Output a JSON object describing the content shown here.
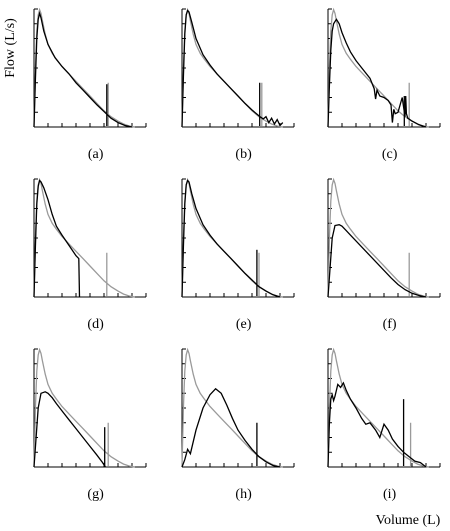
{
  "chart_data": {
    "type": "line",
    "ylabel": "Flow (L/s)",
    "xlabel": "Volume (L)",
    "layout": "3x3 grid of flow-volume curves; grey = reference curve, black = test curve; vertical strokes mark end-of-curve volume",
    "grid": false,
    "legend": "none",
    "xlim": [
      0,
      8
    ],
    "ylim": [
      0,
      8
    ],
    "x_ticks": [
      0,
      1,
      2,
      3,
      4,
      5,
      6,
      7,
      8
    ],
    "y_ticks": [
      0,
      1,
      2,
      3,
      4,
      5,
      6,
      7,
      8
    ],
    "reference_curve": {
      "x": [
        0,
        0.1,
        0.2,
        0.3,
        0.4,
        0.5,
        0.6,
        0.8,
        1.0,
        1.3,
        1.6,
        2.0,
        2.5,
        3.0,
        3.5,
        4.0,
        4.5,
        5.0,
        5.5,
        6.0,
        6.4,
        6.8,
        7.2
      ],
      "y": [
        0,
        4.0,
        6.5,
        7.6,
        7.95,
        7.7,
        7.2,
        6.3,
        5.6,
        5.0,
        4.6,
        4.1,
        3.6,
        3.1,
        2.6,
        2.1,
        1.6,
        1.1,
        0.7,
        0.4,
        0.2,
        0.07,
        0
      ]
    },
    "panels": [
      {
        "label": "(a)",
        "ref_end": 5.3,
        "test": {
          "x": [
            0,
            0.1,
            0.2,
            0.3,
            0.4,
            0.5,
            0.7,
            1.0,
            1.5,
            2.0,
            2.5,
            3.0,
            3.5,
            4.0,
            4.5,
            5.0,
            5.5,
            6.0,
            6.5,
            7.0
          ],
          "y": [
            0,
            3.2,
            6.0,
            7.3,
            7.7,
            7.4,
            6.5,
            5.6,
            4.7,
            4.1,
            3.6,
            3.0,
            2.5,
            2.0,
            1.5,
            1.05,
            0.6,
            0.3,
            0.1,
            0
          ]
        },
        "test_end": 5.2,
        "test_end_height": 2.9
      },
      {
        "label": "(b)",
        "ref_end": 5.7,
        "test": {
          "x": [
            0,
            0.1,
            0.2,
            0.3,
            0.4,
            0.5,
            0.7,
            1.0,
            1.5,
            2.0,
            2.5,
            3.0,
            3.5,
            4.0,
            4.5,
            5.0,
            5.5,
            5.8,
            6.0,
            6.2,
            6.4,
            6.6,
            6.8,
            7.0,
            7.2
          ],
          "y": [
            0,
            3.4,
            6.3,
            7.6,
            7.9,
            7.8,
            7.1,
            6.0,
            4.9,
            4.2,
            3.6,
            3.1,
            2.6,
            2.1,
            1.6,
            1.15,
            0.75,
            0.55,
            0.7,
            0.3,
            0.6,
            0.2,
            0.5,
            0.1,
            0.3
          ]
        },
        "test_end": 5.55,
        "test_end_height": 3.0
      },
      {
        "label": "(c)",
        "ref_end": 5.8,
        "test": {
          "x": [
            0,
            0.1,
            0.2,
            0.3,
            0.4,
            0.6,
            0.8,
            1.0,
            1.3,
            1.6,
            2.0,
            2.5,
            3.0,
            3.3,
            3.4,
            3.5,
            3.7,
            4.0,
            4.3,
            4.5,
            4.6,
            4.7,
            4.8,
            5.0,
            5.3,
            5.5,
            5.55,
            5.6,
            5.7,
            6.0,
            6.5,
            7.0
          ],
          "y": [
            0,
            2.8,
            5.2,
            6.5,
            7.0,
            7.3,
            7.0,
            6.4,
            5.7,
            5.1,
            4.5,
            3.9,
            3.3,
            2.6,
            1.9,
            2.5,
            2.1,
            2.0,
            1.8,
            1.5,
            0.3,
            1.2,
            0.9,
            1.0,
            2.0,
            0.7,
            2.1,
            0.9,
            0.6,
            0.4,
            0.15,
            0
          ]
        },
        "test_end": 5.45,
        "test_end_height": 2.1
      },
      {
        "label": "(d)",
        "ref_end": 5.2,
        "test": {
          "x": [
            0,
            0.1,
            0.2,
            0.3,
            0.4,
            0.5,
            0.7,
            1.0,
            1.3,
            1.6,
            2.0,
            2.5,
            3.0,
            3.2,
            3.25
          ],
          "y": [
            0,
            3.4,
            6.3,
            7.5,
            7.9,
            7.8,
            7.4,
            6.6,
            5.6,
            4.8,
            4.2,
            3.5,
            2.8,
            2.6,
            0
          ]
        },
        "test_end": null,
        "test_end_height": null
      },
      {
        "label": "(e)",
        "ref_end": 5.5,
        "test": {
          "x": [
            0,
            0.1,
            0.2,
            0.3,
            0.4,
            0.5,
            0.7,
            1.0,
            1.5,
            2.0,
            2.5,
            3.0,
            3.5,
            4.0,
            4.5,
            5.0,
            5.5,
            6.0,
            6.5,
            7.0
          ],
          "y": [
            0,
            3.4,
            6.3,
            7.6,
            7.9,
            7.8,
            7.0,
            6.0,
            4.9,
            4.2,
            3.6,
            3.1,
            2.6,
            2.1,
            1.6,
            1.15,
            0.7,
            0.4,
            0.15,
            0
          ]
        },
        "test_end": 5.35,
        "test_end_height": 3.2
      },
      {
        "label": "(f)",
        "ref_end": 5.8,
        "test": {
          "x": [
            0,
            0.15,
            0.3,
            0.5,
            0.8,
            1.0,
            1.3,
            1.6,
            2.0,
            2.5,
            3.0,
            3.5,
            4.0,
            4.5,
            5.0,
            5.5,
            6.0,
            6.5,
            7.0
          ],
          "y": [
            0,
            2.0,
            4.0,
            4.85,
            4.9,
            4.8,
            4.5,
            4.2,
            3.8,
            3.3,
            2.8,
            2.3,
            1.8,
            1.3,
            0.85,
            0.5,
            0.25,
            0.1,
            0
          ]
        },
        "test_end": null,
        "test_end_height": null
      },
      {
        "label": "(g)",
        "ref_end": 5.3,
        "test": {
          "x": [
            0,
            0.15,
            0.3,
            0.5,
            0.8,
            1.0,
            1.3,
            1.6,
            2.0,
            2.5,
            3.0,
            3.5,
            4.0,
            4.5,
            4.9,
            5.1
          ],
          "y": [
            0,
            2.0,
            4.0,
            5.0,
            5.1,
            5.0,
            4.7,
            4.3,
            3.8,
            3.2,
            2.6,
            2.0,
            1.4,
            0.8,
            0.3,
            0
          ]
        },
        "test_end": 5.05,
        "test_end_height": 2.7
      },
      {
        "label": "(h)",
        "ref_end": null,
        "test": {
          "x": [
            0,
            0.2,
            0.4,
            0.6,
            1.0,
            1.5,
            2.0,
            2.4,
            2.8,
            3.2,
            3.6,
            4.0,
            4.5,
            5.0,
            5.5,
            6.0,
            6.5,
            7.0
          ],
          "y": [
            0,
            0.5,
            1.2,
            0.9,
            2.5,
            4.0,
            4.9,
            5.3,
            5.0,
            4.2,
            3.3,
            2.5,
            1.8,
            1.2,
            0.7,
            0.35,
            0.1,
            0
          ]
        },
        "test_end": 5.35,
        "test_end_height": 3.0
      },
      {
        "label": "(i)",
        "ref_end": 5.9,
        "test": {
          "x": [
            0,
            0.1,
            0.2,
            0.3,
            0.4,
            0.5,
            0.7,
            0.9,
            1.1,
            1.3,
            1.6,
            2.0,
            2.4,
            2.7,
            3.0,
            3.4,
            3.7,
            4.0,
            4.3,
            4.6,
            5.0,
            5.4,
            5.8,
            6.2,
            6.6,
            7.0
          ],
          "y": [
            0,
            3.0,
            4.6,
            4.9,
            4.5,
            4.8,
            5.6,
            5.4,
            5.7,
            5.2,
            4.6,
            4.0,
            3.3,
            2.9,
            3.0,
            2.5,
            2.0,
            2.9,
            2.5,
            1.9,
            1.4,
            1.0,
            0.7,
            0.4,
            0.3,
            0
          ]
        },
        "test_end": 5.4,
        "test_end_height": 4.6
      }
    ]
  }
}
